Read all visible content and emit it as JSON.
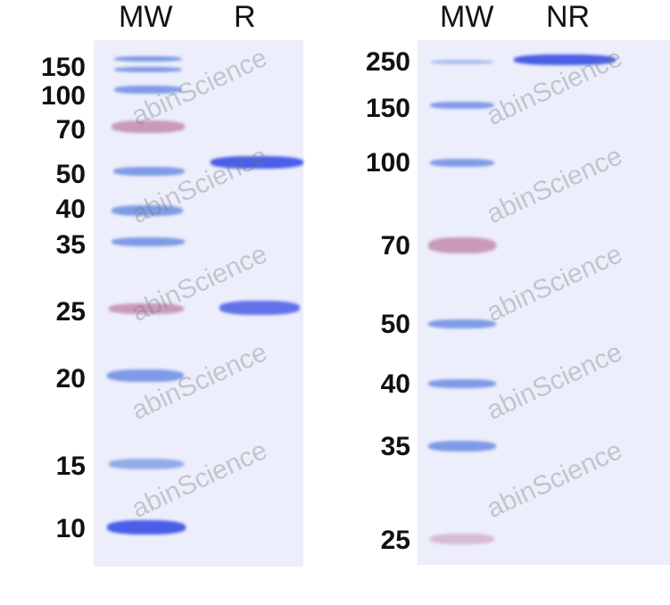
{
  "left_panel": {
    "lanes": [
      "MW",
      "R"
    ],
    "markers": [
      "150",
      "100",
      "70",
      "50",
      "40",
      "35",
      "25",
      "20",
      "15",
      "10"
    ]
  },
  "right_panel": {
    "lanes": [
      "MW",
      "NR"
    ],
    "markers": [
      "250",
      "150",
      "100",
      "70",
      "50",
      "40",
      "35",
      "25"
    ]
  },
  "watermark": "abinScience",
  "colors": {
    "gel": "#eceefb",
    "band": "#4a5ee8",
    "marker_blue": "#7f9be6",
    "marker_pink": "#c99ab8"
  }
}
